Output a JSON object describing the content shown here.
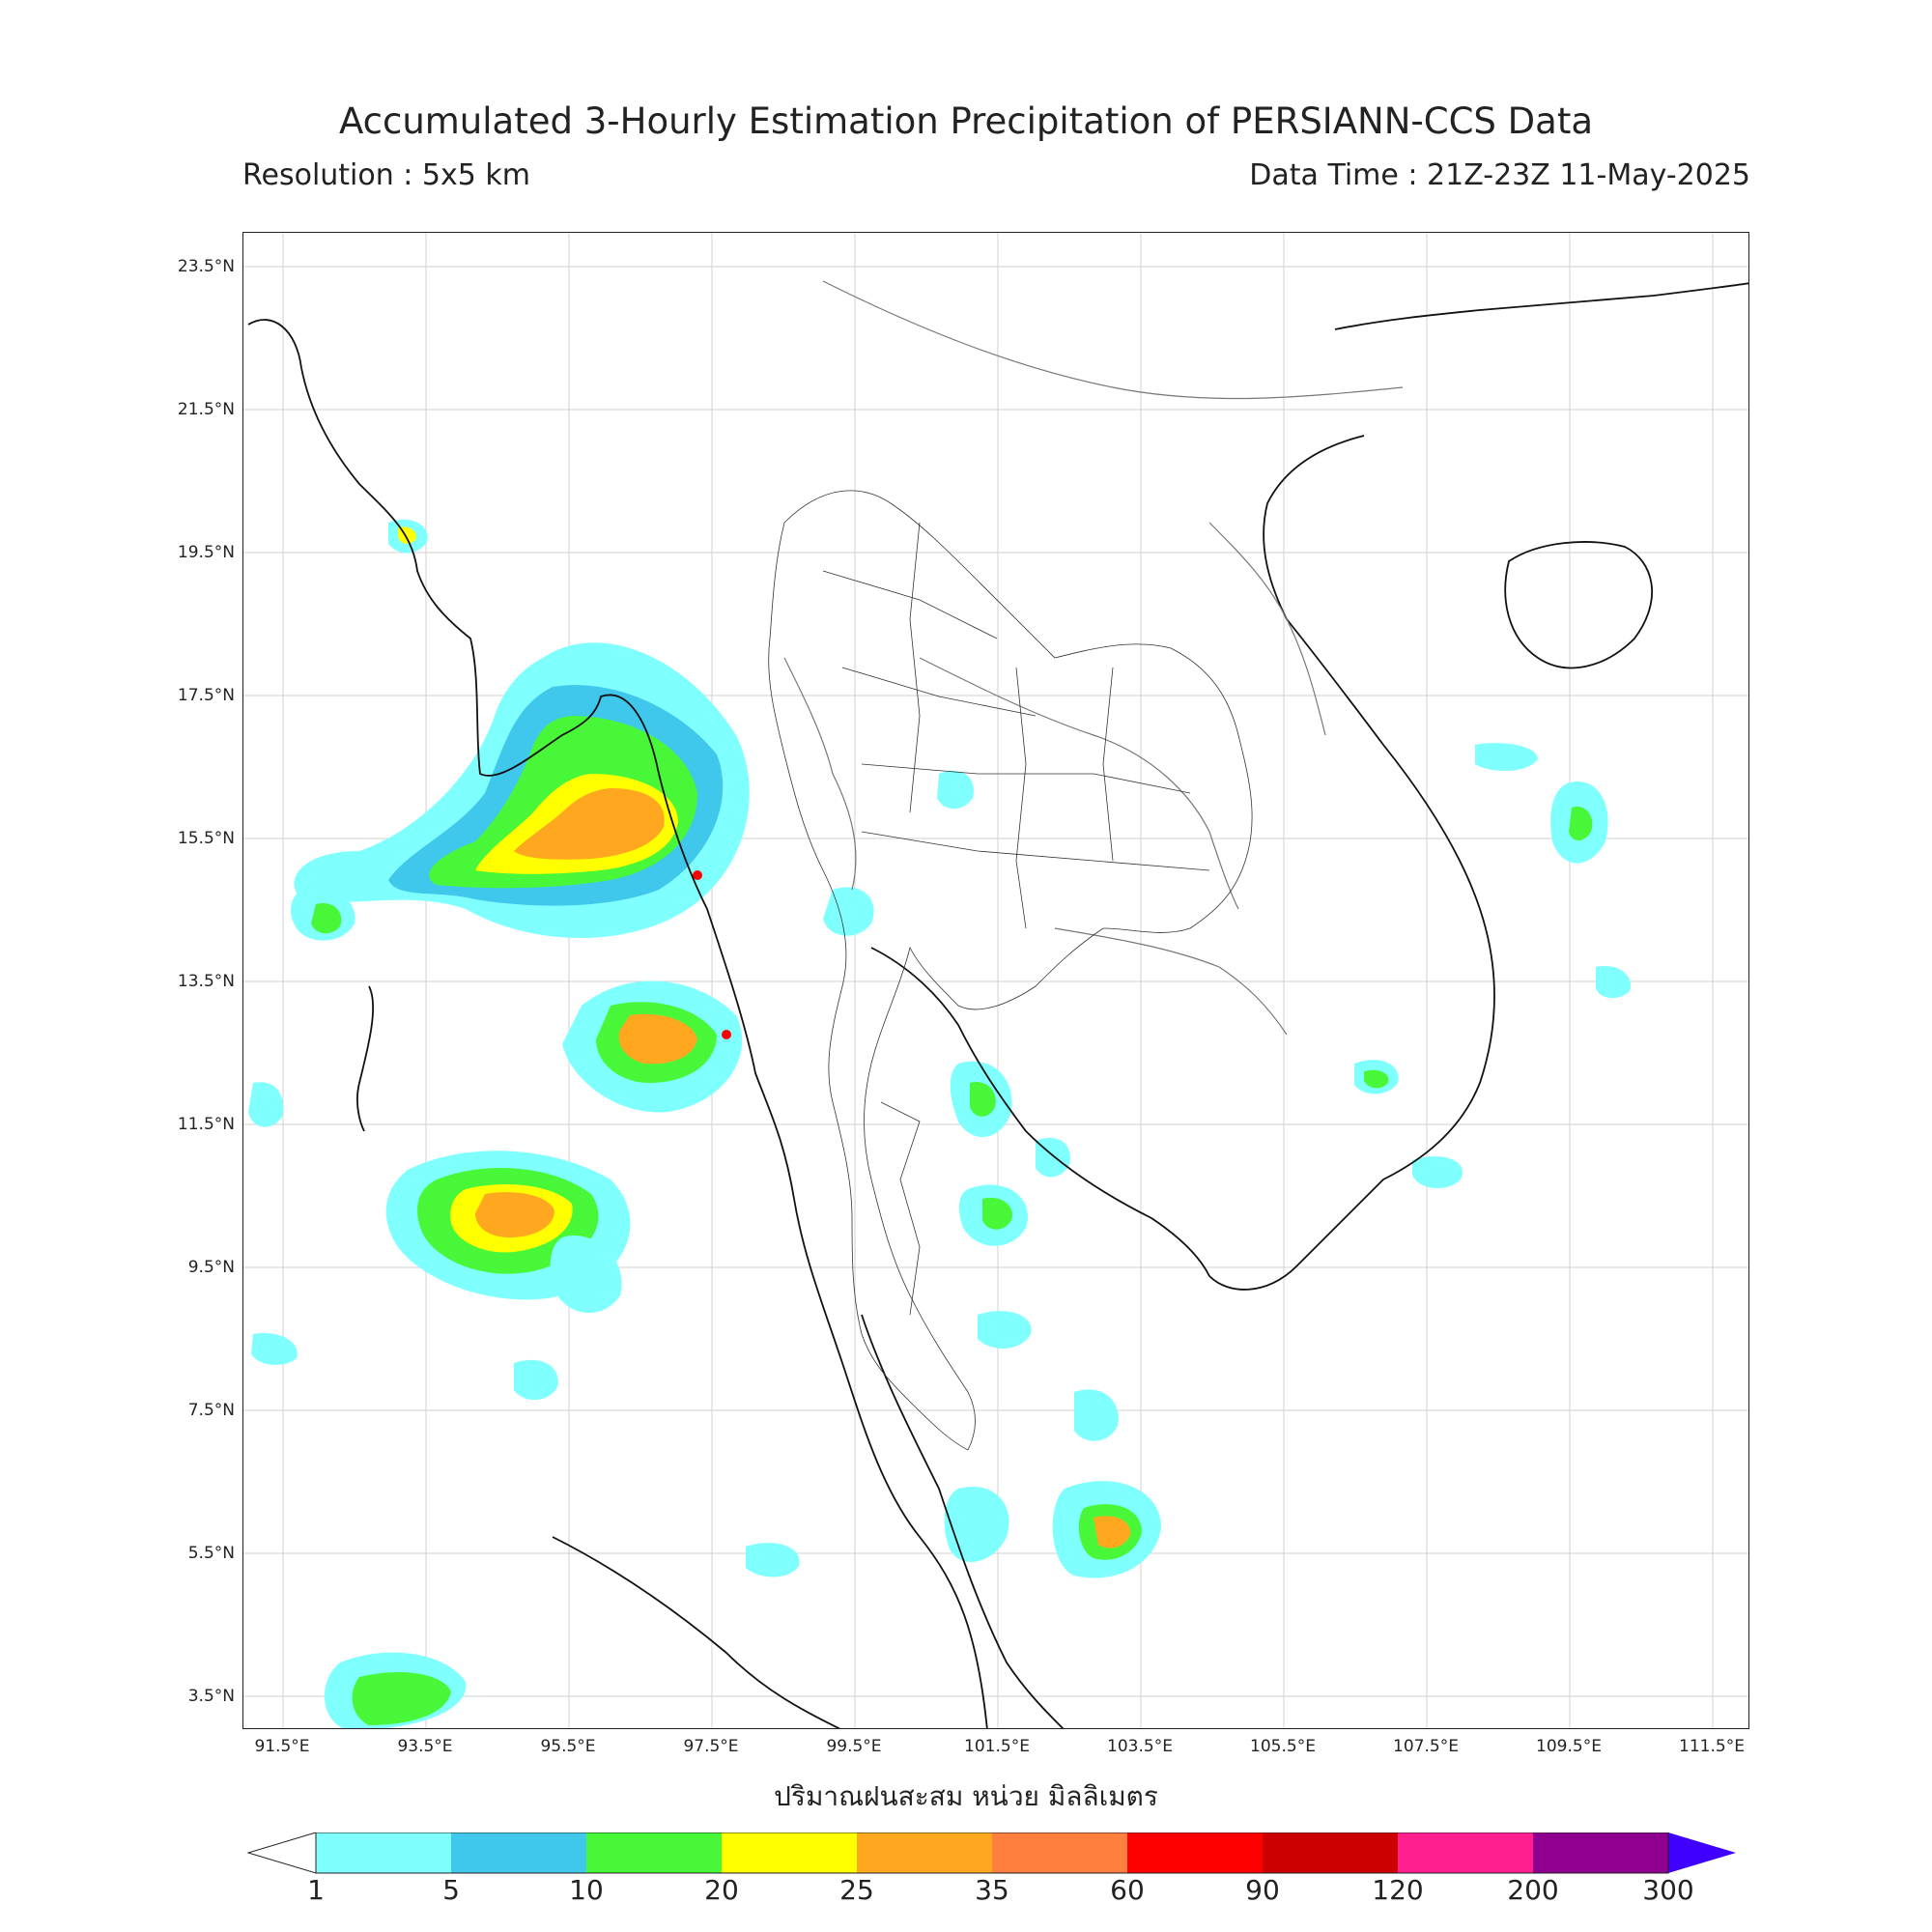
{
  "header": {
    "title": "Accumulated 3-Hourly Estimation Precipitation of PERSIANN-CCS Data",
    "resolution": "Resolution : 5x5 km",
    "data_time": "Data Time : 21Z-23Z 11-May-2025"
  },
  "axes": {
    "lat_ticks": [
      "23.5°N",
      "21.5°N",
      "19.5°N",
      "17.5°N",
      "15.5°N",
      "13.5°N",
      "11.5°N",
      "9.5°N",
      "7.5°N",
      "5.5°N",
      "3.5°N"
    ],
    "lon_ticks": [
      "91.5°E",
      "93.5°E",
      "95.5°E",
      "97.5°E",
      "99.5°E",
      "101.5°E",
      "103.5°E",
      "105.5°E",
      "107.5°E",
      "109.5°E",
      "111.5°E"
    ],
    "xlabel": "ปริมาณฝนสะสม หน่วย มิลลิเมตร"
  },
  "colorbar": {
    "labels": [
      "1",
      "5",
      "10",
      "20",
      "25",
      "35",
      "60",
      "90",
      "120",
      "200",
      "300"
    ],
    "colors": [
      "#80ffff",
      "#40c8ec",
      "#48f838",
      "#ffff00",
      "#ffa81f",
      "#ff7f3f",
      "#ff0000",
      "#cc0000",
      "#ff1f8f",
      "#8f0090",
      "#4000ff"
    ]
  },
  "colors": {
    "cyan": "#80ffff",
    "blue": "#40c8ec",
    "green": "#48f838",
    "yellow": "#ffff00",
    "orange": "#ffa81f",
    "dark_orange": "#ff7f3f",
    "red": "#ff0000"
  }
}
